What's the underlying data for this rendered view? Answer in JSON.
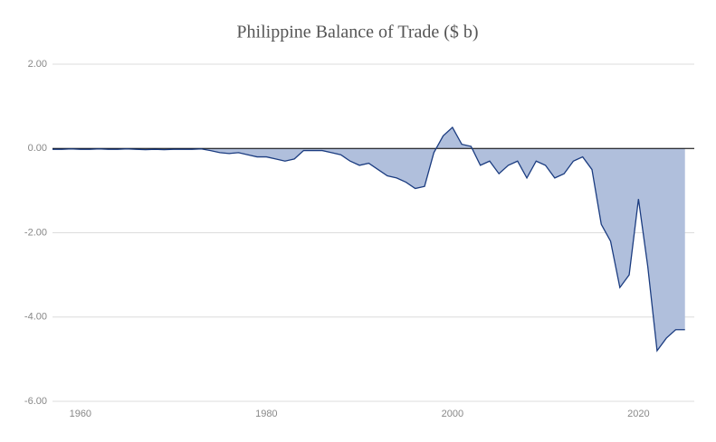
{
  "chart_data": {
    "type": "area",
    "title": "Philippine Balance of Trade ($ b)",
    "x": [
      1957,
      1958,
      1959,
      1960,
      1961,
      1962,
      1963,
      1964,
      1965,
      1966,
      1967,
      1968,
      1969,
      1970,
      1971,
      1972,
      1973,
      1974,
      1975,
      1976,
      1977,
      1978,
      1979,
      1980,
      1981,
      1982,
      1983,
      1984,
      1985,
      1986,
      1987,
      1988,
      1989,
      1990,
      1991,
      1992,
      1993,
      1994,
      1995,
      1996,
      1997,
      1998,
      1999,
      2000,
      2001,
      2002,
      2003,
      2004,
      2005,
      2006,
      2007,
      2008,
      2009,
      2010,
      2011,
      2012,
      2013,
      2014,
      2015,
      2016,
      2017,
      2018,
      2019,
      2020,
      2021,
      2022,
      2023,
      2024,
      2025
    ],
    "series": [
      {
        "color": "#1b3c80",
        "fill": "#b0bfdc",
        "values": [
          -0.02,
          -0.02,
          -0.01,
          -0.02,
          -0.02,
          -0.01,
          -0.02,
          -0.02,
          -0.01,
          -0.02,
          -0.03,
          -0.02,
          -0.03,
          -0.02,
          -0.02,
          -0.02,
          -0.01,
          -0.05,
          -0.1,
          -0.12,
          -0.1,
          -0.15,
          -0.2,
          -0.2,
          -0.25,
          -0.3,
          -0.25,
          -0.05,
          -0.05,
          -0.05,
          -0.1,
          -0.15,
          -0.3,
          -0.4,
          -0.35,
          -0.5,
          -0.65,
          -0.7,
          -0.8,
          -0.95,
          -0.9,
          -0.1,
          0.3,
          0.5,
          0.1,
          0.05,
          -0.4,
          -0.3,
          -0.6,
          -0.4,
          -0.3,
          -0.7,
          -0.3,
          -0.4,
          -0.7,
          -0.6,
          -0.3,
          -0.2,
          -0.5,
          -1.8,
          -2.2,
          -3.3,
          -3.0,
          -1.2,
          -2.8,
          -4.8,
          -4.5,
          -4.3,
          -4.3
        ]
      }
    ],
    "xlim": [
      1957,
      2026
    ],
    "xticks": [
      1960,
      1980,
      2000,
      2020
    ],
    "ylim": [
      -6,
      2
    ],
    "yticks": [
      {
        "value": -6,
        "label": "-6.00"
      },
      {
        "value": -4,
        "label": "-4.00"
      },
      {
        "value": -2,
        "label": "-2.00"
      },
      {
        "value": 0,
        "label": "0.00"
      },
      {
        "value": 2,
        "label": "2.00"
      }
    ],
    "grid": true
  }
}
